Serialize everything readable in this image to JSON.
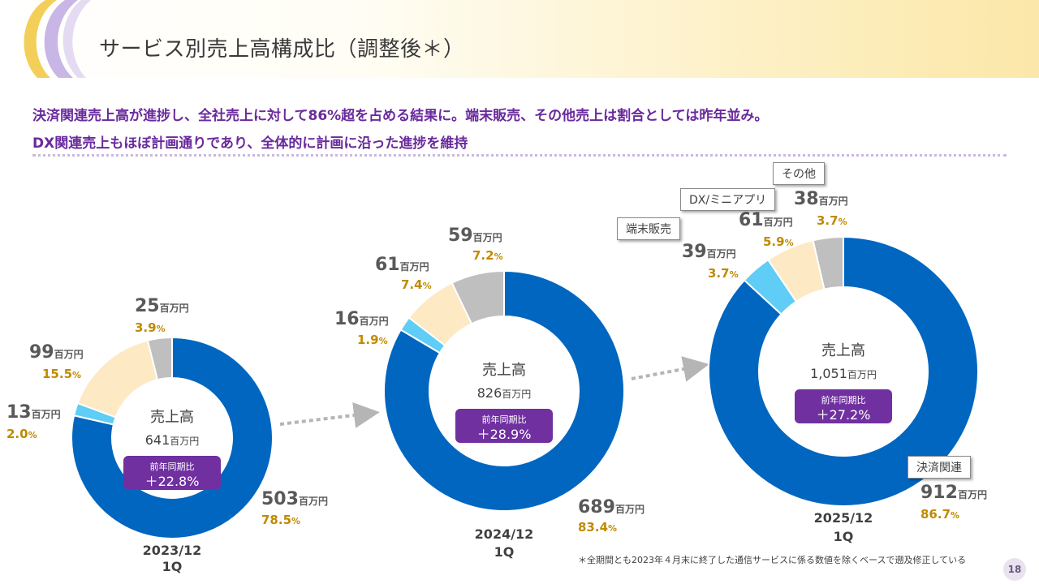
{
  "header": {
    "title": "サービス別売上高構成比（調整後＊）"
  },
  "summary": {
    "line1": "決済関連売上高が進捗し、全社売上に対して86%超を占める結果に。端末販売、その他売上は割合としては昨年並み。",
    "line2": "DX関連売上もほぼ計画通りであり、全体的に計画に沿った進捗を維持"
  },
  "legend_tags": {
    "other": "その他",
    "dx": "DX/ミニアプリ",
    "terminal": "端末販売",
    "payment": "決済関連"
  },
  "footnote": "＊全期間とも2023年４月末に終了した通信サービスに係る数値を除くベースで遡及修正している",
  "page_number": "18",
  "colors": {
    "payment": "#0066c0",
    "terminal": "#5fcdf5",
    "dx": "#fde9c4",
    "other": "#bfbfbf",
    "badge": "#7030a0",
    "percent": "#c08a00",
    "value": "#595959"
  },
  "chart_data": [
    {
      "type": "pie",
      "period": "2023/12",
      "period_sub": "1Q",
      "center_label": "売上高",
      "total": "641",
      "unit": "百万円",
      "yoy_label": "前年同期比",
      "yoy_value": "＋22.8%",
      "slices": [
        {
          "key": "payment",
          "value": 503,
          "percent": "78.5",
          "pct_unit": "%"
        },
        {
          "key": "terminal",
          "value": 13,
          "percent": "2.0",
          "pct_unit": "%"
        },
        {
          "key": "dx",
          "value": 99,
          "percent": "15.5",
          "pct_unit": "%"
        },
        {
          "key": "other",
          "value": 25,
          "percent": "3.9",
          "pct_unit": "%"
        }
      ]
    },
    {
      "type": "pie",
      "period": "2024/12",
      "period_sub": "1Q",
      "center_label": "売上高",
      "total": "826",
      "unit": "百万円",
      "yoy_label": "前年同期比",
      "yoy_value": "＋28.9%",
      "slices": [
        {
          "key": "payment",
          "value": 689,
          "percent": "83.4",
          "pct_unit": "%"
        },
        {
          "key": "terminal",
          "value": 16,
          "percent": "1.9",
          "pct_unit": "%"
        },
        {
          "key": "dx",
          "value": 61,
          "percent": "7.4",
          "pct_unit": "%"
        },
        {
          "key": "other",
          "value": 59,
          "percent": "7.2",
          "pct_unit": "%"
        }
      ]
    },
    {
      "type": "pie",
      "period": "2025/12",
      "period_sub": "1Q",
      "center_label": "売上高",
      "total": "1,051",
      "unit": "百万円",
      "yoy_label": "前年同期比",
      "yoy_value": "＋27.2%",
      "slices": [
        {
          "key": "payment",
          "value": 912,
          "percent": "86.7",
          "pct_unit": "%"
        },
        {
          "key": "terminal",
          "value": 39,
          "percent": "3.7",
          "pct_unit": "%"
        },
        {
          "key": "dx",
          "value": 61,
          "percent": "5.9",
          "pct_unit": "%"
        },
        {
          "key": "other",
          "value": 38,
          "percent": "3.7",
          "pct_unit": "%"
        }
      ]
    }
  ]
}
